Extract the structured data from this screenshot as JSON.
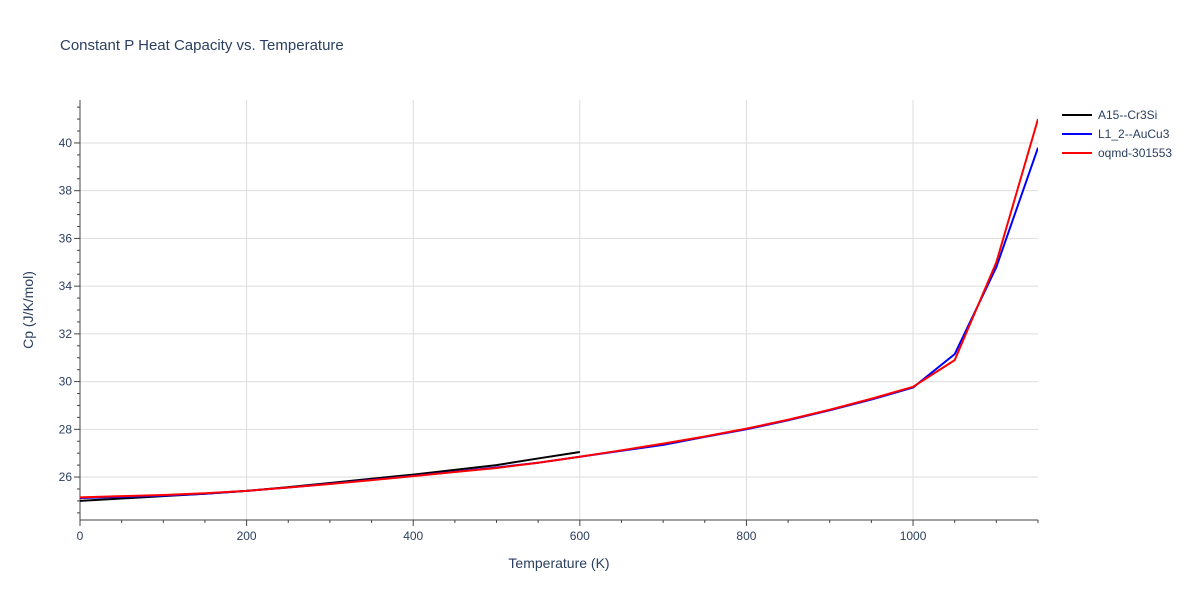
{
  "chart_data": {
    "type": "line",
    "title": "Constant P Heat Capacity vs. Temperature",
    "xlabel": "Temperature (K)",
    "ylabel": "Cp (J/K/mol)",
    "xlim": [
      0,
      1150
    ],
    "ylim": [
      24.2,
      41.8
    ],
    "xticks": [
      0,
      200,
      400,
      600,
      800,
      1000
    ],
    "yticks": [
      26,
      28,
      30,
      32,
      34,
      36,
      38,
      40
    ],
    "grid": true,
    "legend_position": "top-right",
    "series": [
      {
        "name": "A15--Cr3Si",
        "color": "#000000",
        "x": [
          0,
          50,
          100,
          150,
          200,
          250,
          300,
          350,
          400,
          450,
          500,
          550,
          600
        ],
        "y": [
          25.0,
          25.1,
          25.2,
          25.3,
          25.42,
          25.58,
          25.75,
          25.93,
          26.1,
          26.3,
          26.5,
          26.78,
          27.05
        ]
      },
      {
        "name": "L1_2--AuCu3",
        "color": "#0000ff",
        "x": [
          0,
          50,
          100,
          150,
          200,
          250,
          300,
          350,
          400,
          450,
          500,
          550,
          600,
          650,
          700,
          750,
          800,
          850,
          900,
          950,
          1000,
          1050,
          1100,
          1150
        ],
        "y": [
          25.12,
          25.17,
          25.22,
          25.3,
          25.42,
          25.56,
          25.72,
          25.88,
          26.05,
          26.22,
          26.4,
          26.6,
          26.85,
          27.1,
          27.35,
          27.68,
          28.0,
          28.38,
          28.8,
          29.25,
          29.75,
          31.15,
          34.8,
          39.8
        ]
      },
      {
        "name": "oqmd-301553",
        "color": "#ff0000",
        "x": [
          0,
          50,
          100,
          150,
          200,
          250,
          300,
          350,
          400,
          450,
          500,
          550,
          600,
          650,
          700,
          750,
          800,
          850,
          900,
          950,
          1000,
          1050,
          1100,
          1150
        ],
        "y": [
          25.15,
          25.2,
          25.25,
          25.32,
          25.42,
          25.56,
          25.71,
          25.87,
          26.04,
          26.21,
          26.38,
          26.6,
          26.85,
          27.12,
          27.4,
          27.7,
          28.03,
          28.4,
          28.82,
          29.28,
          29.78,
          30.9,
          35.0,
          41.0
        ]
      }
    ]
  }
}
